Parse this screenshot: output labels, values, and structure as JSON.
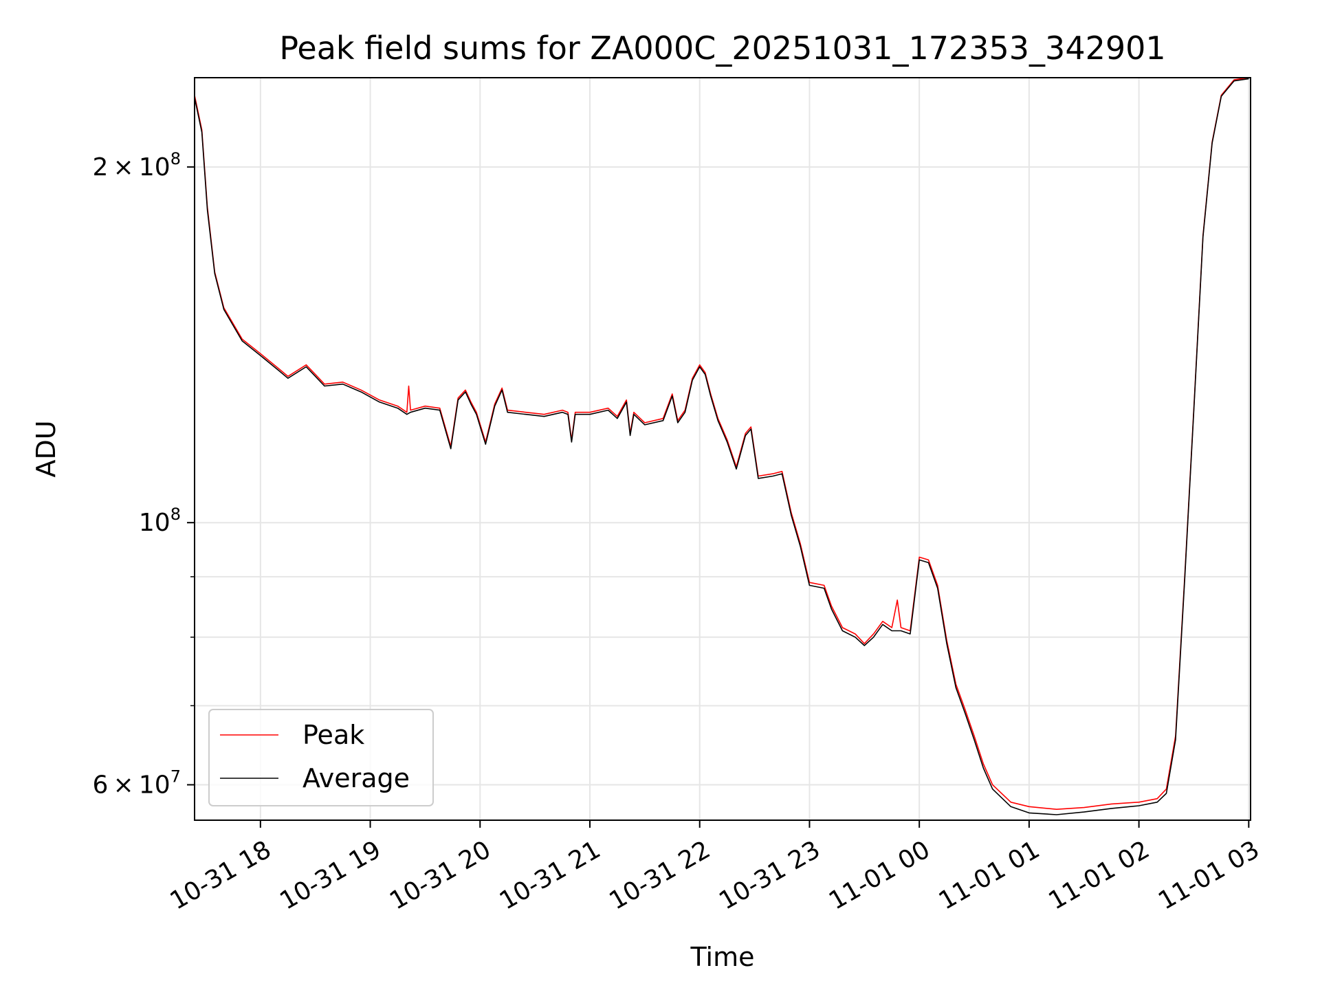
{
  "chart_data": {
    "type": "line",
    "title": "Peak field sums for ZA000C_20251031_172353_342901",
    "xlabel": "Time",
    "ylabel": "ADU",
    "yscale": "log",
    "grid": true,
    "legend_position": "lower-left",
    "xlim": [
      "2025-10-31 17:24",
      "2025-11-01 03:01"
    ],
    "ylim": [
      56000000,
      238000000
    ],
    "x_ticks": [
      {
        "value": "2025-10-31 18:00",
        "label": "10-31 18"
      },
      {
        "value": "2025-10-31 19:00",
        "label": "10-31 19"
      },
      {
        "value": "2025-10-31 20:00",
        "label": "10-31 20"
      },
      {
        "value": "2025-10-31 21:00",
        "label": "10-31 21"
      },
      {
        "value": "2025-10-31 22:00",
        "label": "10-31 22"
      },
      {
        "value": "2025-10-31 23:00",
        "label": "10-31 23"
      },
      {
        "value": "2025-11-01 00:00",
        "label": "11-01 00"
      },
      {
        "value": "2025-11-01 01:00",
        "label": "11-01 01"
      },
      {
        "value": "2025-11-01 02:00",
        "label": "11-01 02"
      },
      {
        "value": "2025-11-01 03:00",
        "label": "11-01 03"
      }
    ],
    "y_major_ticks": [
      {
        "value": 60000000,
        "mantissa": "6",
        "base": "10",
        "exp": "7"
      },
      {
        "value": 100000000,
        "mantissa": "",
        "base": "10",
        "exp": "8"
      },
      {
        "value": 200000000,
        "mantissa": "2",
        "base": "10",
        "exp": "8"
      }
    ],
    "y_minor_ticks": [
      70000000,
      80000000,
      90000000
    ],
    "series": [
      {
        "name": "Peak",
        "color": "#ff0000",
        "points": [
          [
            "2025-10-31 17:24",
            230000000
          ],
          [
            "2025-10-31 17:28",
            215000000
          ],
          [
            "2025-10-31 17:31",
            185000000
          ],
          [
            "2025-10-31 17:35",
            163000000
          ],
          [
            "2025-10-31 17:40",
            152000000
          ],
          [
            "2025-10-31 17:50",
            143000000
          ],
          [
            "2025-10-31 18:00",
            139000000
          ],
          [
            "2025-10-31 18:10",
            135000000
          ],
          [
            "2025-10-31 18:15",
            133000000
          ],
          [
            "2025-10-31 18:25",
            136000000
          ],
          [
            "2025-10-31 18:30",
            133500000
          ],
          [
            "2025-10-31 18:35",
            131000000
          ],
          [
            "2025-10-31 18:45",
            131500000
          ],
          [
            "2025-10-31 18:55",
            129500000
          ],
          [
            "2025-10-31 19:05",
            127000000
          ],
          [
            "2025-10-31 19:15",
            125500000
          ],
          [
            "2025-10-31 19:20",
            124000000
          ],
          [
            "2025-10-31 19:21",
            130500000
          ],
          [
            "2025-10-31 19:22",
            124500000
          ],
          [
            "2025-10-31 19:30",
            125500000
          ],
          [
            "2025-10-31 19:38",
            125000000
          ],
          [
            "2025-10-31 19:44",
            116000000
          ],
          [
            "2025-10-31 19:48",
            127500000
          ],
          [
            "2025-10-31 19:52",
            129500000
          ],
          [
            "2025-10-31 19:55",
            126500000
          ],
          [
            "2025-10-31 19:58",
            124000000
          ],
          [
            "2025-10-31 20:03",
            117000000
          ],
          [
            "2025-10-31 20:08",
            126000000
          ],
          [
            "2025-10-31 20:12",
            130000000
          ],
          [
            "2025-10-31 20:15",
            124500000
          ],
          [
            "2025-10-31 20:25",
            124000000
          ],
          [
            "2025-10-31 20:35",
            123500000
          ],
          [
            "2025-10-31 20:45",
            124500000
          ],
          [
            "2025-10-31 20:48",
            124000000
          ],
          [
            "2025-10-31 20:50",
            117500000
          ],
          [
            "2025-10-31 20:52",
            124000000
          ],
          [
            "2025-10-31 21:00",
            124000000
          ],
          [
            "2025-10-31 21:10",
            125000000
          ],
          [
            "2025-10-31 21:15",
            123000000
          ],
          [
            "2025-10-31 21:20",
            127000000
          ],
          [
            "2025-10-31 21:22",
            119000000
          ],
          [
            "2025-10-31 21:24",
            124000000
          ],
          [
            "2025-10-31 21:30",
            121500000
          ],
          [
            "2025-10-31 21:40",
            122500000
          ],
          [
            "2025-10-31 21:45",
            128500000
          ],
          [
            "2025-10-31 21:48",
            122000000
          ],
          [
            "2025-10-31 21:52",
            124500000
          ],
          [
            "2025-10-31 21:56",
            132500000
          ],
          [
            "2025-10-31 22:00",
            136000000
          ],
          [
            "2025-10-31 22:03",
            134000000
          ],
          [
            "2025-10-31 22:06",
            128500000
          ],
          [
            "2025-10-31 22:10",
            122500000
          ],
          [
            "2025-10-31 22:15",
            117500000
          ],
          [
            "2025-10-31 22:20",
            111500000
          ],
          [
            "2025-10-31 22:25",
            119000000
          ],
          [
            "2025-10-31 22:28",
            120500000
          ],
          [
            "2025-10-31 22:32",
            109500000
          ],
          [
            "2025-10-31 22:40",
            110000000
          ],
          [
            "2025-10-31 22:45",
            110500000
          ],
          [
            "2025-10-31 22:50",
            102000000
          ],
          [
            "2025-10-31 22:55",
            96000000
          ],
          [
            "2025-10-31 23:00",
            89000000
          ],
          [
            "2025-10-31 23:08",
            88500000
          ],
          [
            "2025-10-31 23:12",
            85000000
          ],
          [
            "2025-10-31 23:18",
            81500000
          ],
          [
            "2025-10-31 23:25",
            80500000
          ],
          [
            "2025-10-31 23:30",
            79000000
          ],
          [
            "2025-10-31 23:35",
            80500000
          ],
          [
            "2025-10-31 23:40",
            82500000
          ],
          [
            "2025-10-31 23:45",
            81500000
          ],
          [
            "2025-10-31 23:48",
            86000000
          ],
          [
            "2025-10-31 23:50",
            81500000
          ],
          [
            "2025-10-31 23:55",
            81000000
          ],
          [
            "2025-11-01 00:00",
            93500000
          ],
          [
            "2025-11-01 00:05",
            93000000
          ],
          [
            "2025-11-01 00:10",
            88500000
          ],
          [
            "2025-11-01 00:15",
            79500000
          ],
          [
            "2025-11-01 00:20",
            73000000
          ],
          [
            "2025-11-01 00:25",
            69500000
          ],
          [
            "2025-11-01 00:30",
            66000000
          ],
          [
            "2025-11-01 00:35",
            62500000
          ],
          [
            "2025-11-01 00:40",
            60000000
          ],
          [
            "2025-11-01 00:50",
            58000000
          ],
          [
            "2025-11-01 01:00",
            57500000
          ],
          [
            "2025-11-01 01:15",
            57200000
          ],
          [
            "2025-11-01 01:30",
            57400000
          ],
          [
            "2025-11-01 01:45",
            57800000
          ],
          [
            "2025-11-01 02:00",
            58000000
          ],
          [
            "2025-11-01 02:10",
            58400000
          ],
          [
            "2025-11-01 02:15",
            59500000
          ],
          [
            "2025-11-01 02:20",
            66000000
          ],
          [
            "2025-11-01 02:25",
            90000000
          ],
          [
            "2025-11-01 02:30",
            125000000
          ],
          [
            "2025-11-01 02:35",
            175000000
          ],
          [
            "2025-11-01 02:40",
            210000000
          ],
          [
            "2025-11-01 02:45",
            230000000
          ],
          [
            "2025-11-01 02:52",
            237000000
          ],
          [
            "2025-11-01 03:00",
            238000000
          ]
        ]
      },
      {
        "name": "Average",
        "color": "#000000",
        "points": [
          [
            "2025-10-31 17:24",
            229000000
          ],
          [
            "2025-10-31 17:28",
            214000000
          ],
          [
            "2025-10-31 17:31",
            184000000
          ],
          [
            "2025-10-31 17:35",
            162500000
          ],
          [
            "2025-10-31 17:40",
            151500000
          ],
          [
            "2025-10-31 17:50",
            142500000
          ],
          [
            "2025-10-31 18:00",
            138500000
          ],
          [
            "2025-10-31 18:10",
            134500000
          ],
          [
            "2025-10-31 18:15",
            132500000
          ],
          [
            "2025-10-31 18:25",
            135500000
          ],
          [
            "2025-10-31 18:30",
            133000000
          ],
          [
            "2025-10-31 18:35",
            130500000
          ],
          [
            "2025-10-31 18:45",
            131000000
          ],
          [
            "2025-10-31 18:55",
            129000000
          ],
          [
            "2025-10-31 19:05",
            126500000
          ],
          [
            "2025-10-31 19:15",
            125000000
          ],
          [
            "2025-10-31 19:20",
            123500000
          ],
          [
            "2025-10-31 19:22",
            124000000
          ],
          [
            "2025-10-31 19:30",
            125000000
          ],
          [
            "2025-10-31 19:38",
            124500000
          ],
          [
            "2025-10-31 19:44",
            115500000
          ],
          [
            "2025-10-31 19:48",
            127000000
          ],
          [
            "2025-10-31 19:52",
            129000000
          ],
          [
            "2025-10-31 19:55",
            126000000
          ],
          [
            "2025-10-31 19:58",
            123500000
          ],
          [
            "2025-10-31 20:03",
            116500000
          ],
          [
            "2025-10-31 20:08",
            125500000
          ],
          [
            "2025-10-31 20:12",
            129500000
          ],
          [
            "2025-10-31 20:15",
            124000000
          ],
          [
            "2025-10-31 20:25",
            123500000
          ],
          [
            "2025-10-31 20:35",
            123000000
          ],
          [
            "2025-10-31 20:45",
            124000000
          ],
          [
            "2025-10-31 20:48",
            123500000
          ],
          [
            "2025-10-31 20:50",
            117000000
          ],
          [
            "2025-10-31 20:52",
            123500000
          ],
          [
            "2025-10-31 21:00",
            123500000
          ],
          [
            "2025-10-31 21:10",
            124500000
          ],
          [
            "2025-10-31 21:15",
            122500000
          ],
          [
            "2025-10-31 21:20",
            126500000
          ],
          [
            "2025-10-31 21:22",
            118500000
          ],
          [
            "2025-10-31 21:24",
            123500000
          ],
          [
            "2025-10-31 21:30",
            121000000
          ],
          [
            "2025-10-31 21:40",
            122000000
          ],
          [
            "2025-10-31 21:45",
            128000000
          ],
          [
            "2025-10-31 21:48",
            121500000
          ],
          [
            "2025-10-31 21:52",
            124000000
          ],
          [
            "2025-10-31 21:56",
            132000000
          ],
          [
            "2025-10-31 22:00",
            135500000
          ],
          [
            "2025-10-31 22:03",
            133500000
          ],
          [
            "2025-10-31 22:06",
            128000000
          ],
          [
            "2025-10-31 22:10",
            122000000
          ],
          [
            "2025-10-31 22:15",
            117000000
          ],
          [
            "2025-10-31 22:20",
            111000000
          ],
          [
            "2025-10-31 22:25",
            118500000
          ],
          [
            "2025-10-31 22:28",
            120000000
          ],
          [
            "2025-10-31 22:32",
            109000000
          ],
          [
            "2025-10-31 22:40",
            109500000
          ],
          [
            "2025-10-31 22:45",
            110000000
          ],
          [
            "2025-10-31 22:50",
            101500000
          ],
          [
            "2025-10-31 22:55",
            95500000
          ],
          [
            "2025-10-31 23:00",
            88500000
          ],
          [
            "2025-10-31 23:08",
            88000000
          ],
          [
            "2025-10-31 23:12",
            84500000
          ],
          [
            "2025-10-31 23:18",
            81000000
          ],
          [
            "2025-10-31 23:25",
            80000000
          ],
          [
            "2025-10-31 23:30",
            78700000
          ],
          [
            "2025-10-31 23:35",
            80000000
          ],
          [
            "2025-10-31 23:40",
            82000000
          ],
          [
            "2025-10-31 23:45",
            81000000
          ],
          [
            "2025-10-31 23:50",
            81000000
          ],
          [
            "2025-10-31 23:55",
            80500000
          ],
          [
            "2025-11-01 00:00",
            93000000
          ],
          [
            "2025-11-01 00:05",
            92500000
          ],
          [
            "2025-11-01 00:10",
            88000000
          ],
          [
            "2025-11-01 00:15",
            79000000
          ],
          [
            "2025-11-01 00:20",
            72500000
          ],
          [
            "2025-11-01 00:25",
            69000000
          ],
          [
            "2025-11-01 00:30",
            65500000
          ],
          [
            "2025-11-01 00:35",
            62000000
          ],
          [
            "2025-11-01 00:40",
            59500000
          ],
          [
            "2025-11-01 00:50",
            57500000
          ],
          [
            "2025-11-01 01:00",
            56800000
          ],
          [
            "2025-11-01 01:15",
            56600000
          ],
          [
            "2025-11-01 01:30",
            56900000
          ],
          [
            "2025-11-01 01:45",
            57300000
          ],
          [
            "2025-11-01 02:00",
            57600000
          ],
          [
            "2025-11-01 02:10",
            58000000
          ],
          [
            "2025-11-01 02:15",
            59000000
          ],
          [
            "2025-11-01 02:20",
            65500000
          ],
          [
            "2025-11-01 02:25",
            89500000
          ],
          [
            "2025-11-01 02:30",
            124500000
          ],
          [
            "2025-11-01 02:35",
            174500000
          ],
          [
            "2025-11-01 02:40",
            209500000
          ],
          [
            "2025-11-01 02:45",
            229500000
          ],
          [
            "2025-11-01 02:52",
            236500000
          ],
          [
            "2025-11-01 03:00",
            237500000
          ]
        ]
      }
    ]
  }
}
